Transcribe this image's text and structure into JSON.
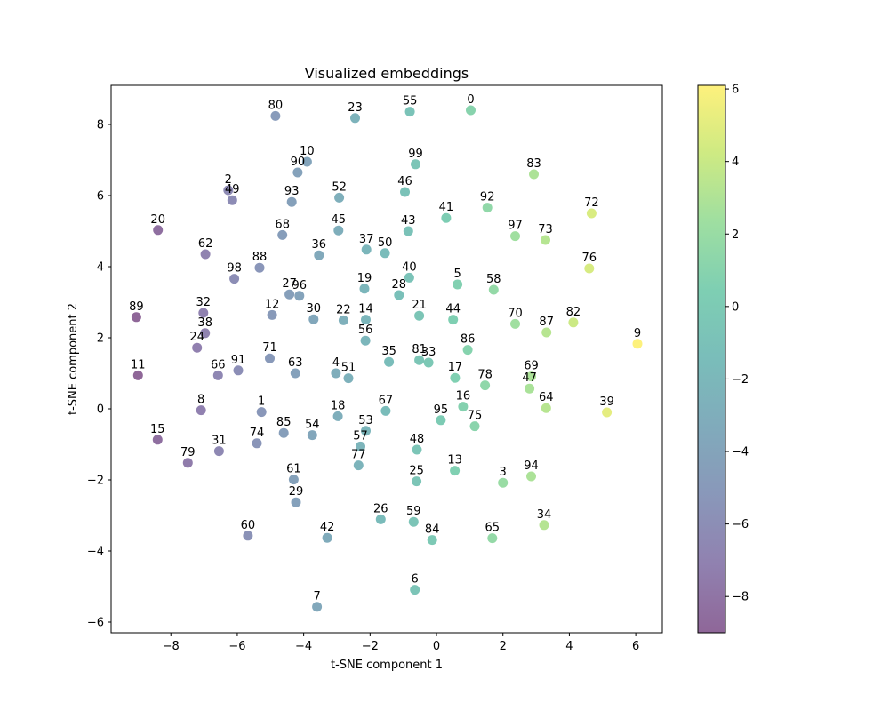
{
  "chart_data": {
    "type": "scatter",
    "title": "Visualized embeddings",
    "xlabel": "t-SNE component 1",
    "ylabel": "t-SNE component 2",
    "xlim": [
      -9.8,
      6.8
    ],
    "ylim": [
      -6.3,
      9.1
    ],
    "xticks": [
      -8,
      -6,
      -4,
      -2,
      0,
      2,
      4,
      6
    ],
    "yticks": [
      -6,
      -4,
      -2,
      0,
      2,
      4,
      6,
      8
    ],
    "grid": false,
    "colorbar": {
      "colormap": "viridis",
      "range": [
        -9.0,
        6.1
      ],
      "ticks": [
        -8,
        -6,
        -4,
        -2,
        0,
        2,
        4,
        6
      ],
      "alpha": 0.6
    },
    "point_color": "value = x component",
    "points": [
      {
        "label": "0",
        "x": 1.03,
        "y": 8.4
      },
      {
        "label": "1",
        "x": -5.27,
        "y": -0.09
      },
      {
        "label": "2",
        "x": -6.27,
        "y": 6.15
      },
      {
        "label": "3",
        "x": 2.0,
        "y": -2.08
      },
      {
        "label": "4",
        "x": -3.03,
        "y": 1.0
      },
      {
        "label": "5",
        "x": 0.63,
        "y": 3.5
      },
      {
        "label": "6",
        "x": -0.65,
        "y": -5.09
      },
      {
        "label": "7",
        "x": -3.6,
        "y": -5.57
      },
      {
        "label": "8",
        "x": -7.09,
        "y": -0.04
      },
      {
        "label": "9",
        "x": 6.05,
        "y": 1.83
      },
      {
        "label": "10",
        "x": -3.9,
        "y": 6.95
      },
      {
        "label": "11",
        "x": -8.99,
        "y": 0.94
      },
      {
        "label": "12",
        "x": -4.95,
        "y": 2.64
      },
      {
        "label": "13",
        "x": 0.55,
        "y": -1.74
      },
      {
        "label": "14",
        "x": -2.13,
        "y": 2.51
      },
      {
        "label": "15",
        "x": -8.4,
        "y": -0.87
      },
      {
        "label": "16",
        "x": 0.8,
        "y": 0.06
      },
      {
        "label": "17",
        "x": 0.56,
        "y": 0.87
      },
      {
        "label": "18",
        "x": -2.97,
        "y": -0.21
      },
      {
        "label": "19",
        "x": -2.17,
        "y": 3.38
      },
      {
        "label": "20",
        "x": -8.39,
        "y": 5.03
      },
      {
        "label": "21",
        "x": -0.52,
        "y": 2.62
      },
      {
        "label": "22",
        "x": -2.8,
        "y": 2.49
      },
      {
        "label": "23",
        "x": -2.45,
        "y": 8.18
      },
      {
        "label": "24",
        "x": -7.21,
        "y": 1.72
      },
      {
        "label": "25",
        "x": -0.6,
        "y": -2.04
      },
      {
        "label": "26",
        "x": -1.68,
        "y": -3.11
      },
      {
        "label": "27",
        "x": -4.43,
        "y": 3.22
      },
      {
        "label": "28",
        "x": -1.13,
        "y": 3.2
      },
      {
        "label": "29",
        "x": -4.23,
        "y": -2.63
      },
      {
        "label": "30",
        "x": -3.7,
        "y": 2.52
      },
      {
        "label": "31",
        "x": -6.55,
        "y": -1.19
      },
      {
        "label": "32",
        "x": -7.02,
        "y": 2.7
      },
      {
        "label": "33",
        "x": -0.24,
        "y": 1.3
      },
      {
        "label": "34",
        "x": 3.24,
        "y": -3.27
      },
      {
        "label": "35",
        "x": -1.43,
        "y": 1.32
      },
      {
        "label": "36",
        "x": -3.54,
        "y": 4.32
      },
      {
        "label": "37",
        "x": -2.11,
        "y": 4.48
      },
      {
        "label": "38",
        "x": -6.97,
        "y": 2.13
      },
      {
        "label": "39",
        "x": 5.13,
        "y": -0.1
      },
      {
        "label": "40",
        "x": -0.82,
        "y": 3.69
      },
      {
        "label": "41",
        "x": 0.29,
        "y": 5.37
      },
      {
        "label": "42",
        "x": -3.29,
        "y": -3.63
      },
      {
        "label": "43",
        "x": -0.85,
        "y": 5.0
      },
      {
        "label": "44",
        "x": 0.5,
        "y": 2.51
      },
      {
        "label": "45",
        "x": -2.95,
        "y": 5.02
      },
      {
        "label": "46",
        "x": -0.95,
        "y": 6.1
      },
      {
        "label": "47",
        "x": 2.8,
        "y": 0.57
      },
      {
        "label": "48",
        "x": -0.59,
        "y": -1.15
      },
      {
        "label": "49",
        "x": -6.15,
        "y": 5.87
      },
      {
        "label": "50",
        "x": -1.55,
        "y": 4.38
      },
      {
        "label": "51",
        "x": -2.65,
        "y": 0.86
      },
      {
        "label": "52",
        "x": -2.93,
        "y": 5.94
      },
      {
        "label": "53",
        "x": -2.13,
        "y": -0.62
      },
      {
        "label": "54",
        "x": -3.74,
        "y": -0.74
      },
      {
        "label": "55",
        "x": -0.8,
        "y": 8.36
      },
      {
        "label": "56",
        "x": -2.14,
        "y": 1.92
      },
      {
        "label": "57",
        "x": -2.29,
        "y": -1.06
      },
      {
        "label": "58",
        "x": 1.72,
        "y": 3.35
      },
      {
        "label": "59",
        "x": -0.69,
        "y": -3.18
      },
      {
        "label": "60",
        "x": -5.68,
        "y": -3.57
      },
      {
        "label": "61",
        "x": -4.3,
        "y": -1.99
      },
      {
        "label": "62",
        "x": -6.96,
        "y": 4.35
      },
      {
        "label": "63",
        "x": -4.25,
        "y": 1.0
      },
      {
        "label": "64",
        "x": 3.3,
        "y": 0.02
      },
      {
        "label": "65",
        "x": 1.68,
        "y": -3.64
      },
      {
        "label": "66",
        "x": -6.58,
        "y": 0.94
      },
      {
        "label": "67",
        "x": -1.53,
        "y": -0.06
      },
      {
        "label": "68",
        "x": -4.64,
        "y": 4.89
      },
      {
        "label": "69",
        "x": 2.85,
        "y": 0.91
      },
      {
        "label": "70",
        "x": 2.37,
        "y": 2.39
      },
      {
        "label": "71",
        "x": -5.02,
        "y": 1.42
      },
      {
        "label": "72",
        "x": 4.67,
        "y": 5.5
      },
      {
        "label": "73",
        "x": 3.28,
        "y": 4.75
      },
      {
        "label": "74",
        "x": -5.41,
        "y": -0.97
      },
      {
        "label": "75",
        "x": 1.15,
        "y": -0.49
      },
      {
        "label": "76",
        "x": 4.6,
        "y": 3.95
      },
      {
        "label": "77",
        "x": -2.35,
        "y": -1.59
      },
      {
        "label": "78",
        "x": 1.46,
        "y": 0.66
      },
      {
        "label": "79",
        "x": -7.49,
        "y": -1.52
      },
      {
        "label": "80",
        "x": -4.85,
        "y": 8.24
      },
      {
        "label": "81",
        "x": -0.52,
        "y": 1.37
      },
      {
        "label": "82",
        "x": 4.12,
        "y": 2.43
      },
      {
        "label": "83",
        "x": 2.93,
        "y": 6.6
      },
      {
        "label": "84",
        "x": -0.13,
        "y": -3.69
      },
      {
        "label": "85",
        "x": -4.6,
        "y": -0.68
      },
      {
        "label": "86",
        "x": 0.94,
        "y": 1.66
      },
      {
        "label": "87",
        "x": 3.31,
        "y": 2.15
      },
      {
        "label": "88",
        "x": -5.33,
        "y": 3.97
      },
      {
        "label": "89",
        "x": -9.04,
        "y": 2.58
      },
      {
        "label": "90",
        "x": -4.18,
        "y": 6.65
      },
      {
        "label": "91",
        "x": -5.97,
        "y": 1.08
      },
      {
        "label": "92",
        "x": 1.53,
        "y": 5.66
      },
      {
        "label": "93",
        "x": -4.36,
        "y": 5.82
      },
      {
        "label": "94",
        "x": 2.85,
        "y": -1.9
      },
      {
        "label": "95",
        "x": 0.13,
        "y": -0.32
      },
      {
        "label": "96",
        "x": -4.13,
        "y": 3.18
      },
      {
        "label": "97",
        "x": 2.37,
        "y": 4.86
      },
      {
        "label": "98",
        "x": -6.09,
        "y": 3.66
      },
      {
        "label": "99",
        "x": -0.63,
        "y": 6.88
      }
    ]
  }
}
